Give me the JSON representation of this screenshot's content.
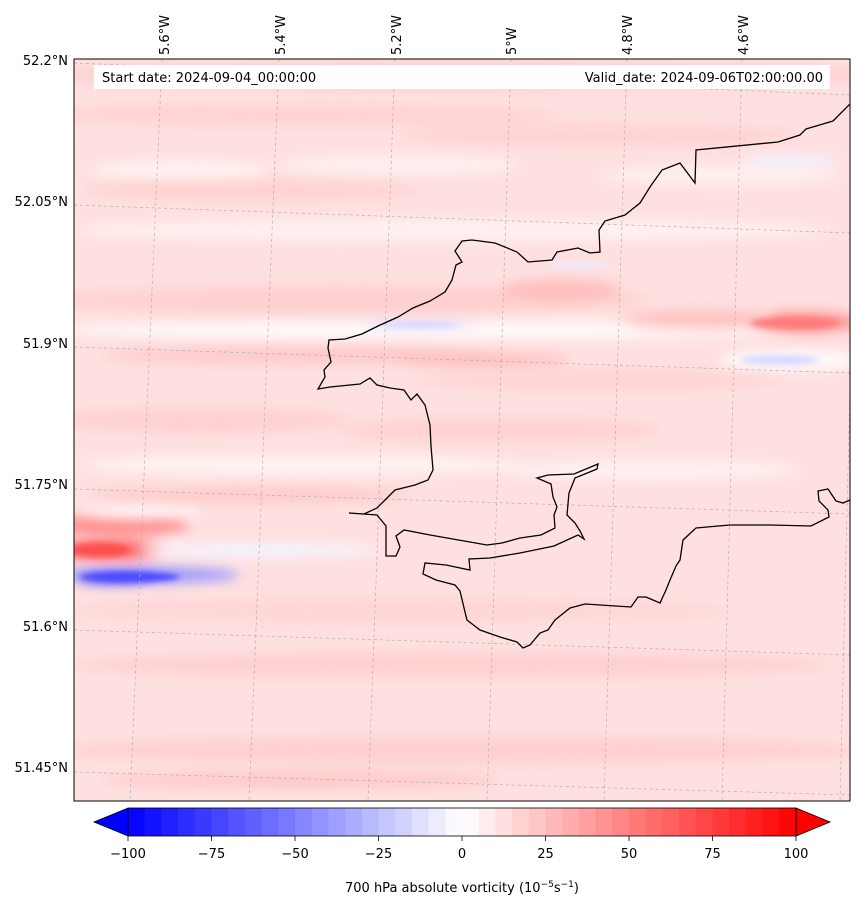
{
  "header": {
    "start_date": "Start date: 2024-09-04_00:00:00",
    "valid_date": "Valid_date: 2024-09-06T02:00:00.00"
  },
  "map": {
    "longitude_labels": [
      "5.6°W",
      "5.4°W",
      "5.2°W",
      "5°W",
      "4.8°W",
      "4.6°W"
    ],
    "latitude_labels": [
      "52.2°N",
      "52.05°N",
      "51.9°N",
      "51.75°N",
      "51.6°N",
      "51.45°N"
    ],
    "colors": {
      "coastline": "#000000",
      "gridline": "#b0b0b0",
      "background_field": "#ffe0e0"
    }
  },
  "colorbar": {
    "label_prefix": "700 hPa absolute vorticity (10",
    "label_exp1": "−5",
    "label_mid": "s",
    "label_exp2": "−1",
    "label_suffix": ")",
    "ticks": [
      "−100",
      "−75",
      "−50",
      "−25",
      "0",
      "25",
      "50",
      "75",
      "100"
    ],
    "range": [
      -100,
      100
    ],
    "colormap": "bwr",
    "extend": "both"
  }
}
